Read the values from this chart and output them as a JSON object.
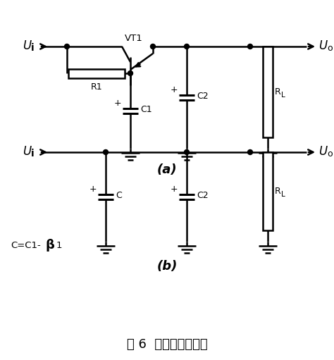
{
  "bg_color": "#ffffff",
  "line_color": "#000000",
  "lw": 1.8,
  "title": "图 6  电子滤波器电路",
  "title_fontsize": 13,
  "label_a": "(a)",
  "label_b": "(b)",
  "label_fontsize": 13
}
